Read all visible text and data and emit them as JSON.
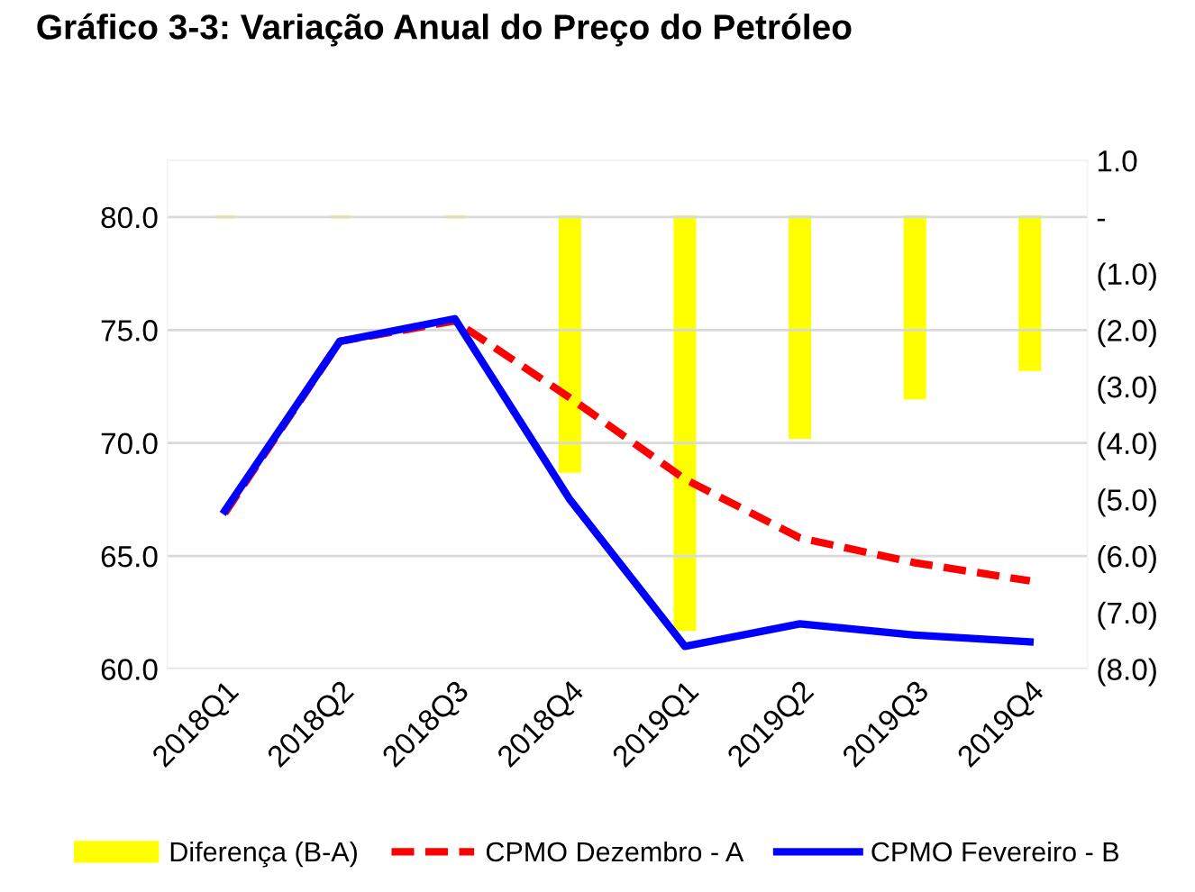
{
  "chart_data": {
    "type": "line",
    "title": "Gráfico 3-3: Variação Anual do Preço do Petróleo",
    "categories": [
      "2018Q1",
      "2018Q2",
      "2018Q3",
      "2018Q4",
      "2019Q1",
      "2019Q2",
      "2019Q3",
      "2019Q4"
    ],
    "series": [
      {
        "name": "Diferença (B-A)",
        "type": "bar",
        "axis": "y2",
        "color": "#ffff00",
        "values": [
          0,
          0,
          0,
          -4.5,
          -7.3,
          -3.9,
          -3.2,
          -2.7
        ]
      },
      {
        "name": "CPMO Dezembro - A",
        "line_style": "dashed",
        "color": "#ff0000",
        "values": [
          66.9,
          74.5,
          75.4,
          72.0,
          68.4,
          65.8,
          64.7,
          63.9
        ]
      },
      {
        "name": "CPMO Fevereiro - B",
        "line_style": "solid",
        "color": "#0000ff",
        "values": [
          67.0,
          74.5,
          75.5,
          67.5,
          61.0,
          62.0,
          61.5,
          61.2
        ]
      }
    ],
    "ylim": [
      60,
      82.5
    ],
    "yticks": [
      {
        "value": 60,
        "label": "60.0"
      },
      {
        "value": 65,
        "label": "65.0"
      },
      {
        "value": 70,
        "label": "70.0"
      },
      {
        "value": 75,
        "label": "75.0"
      },
      {
        "value": 80,
        "label": "80.0"
      }
    ],
    "y2lim": [
      -8,
      1
    ],
    "y2ticks": [
      {
        "value": 1,
        "label": "1.0"
      },
      {
        "value": 0,
        "label": "-"
      },
      {
        "value": -1,
        "label": "(1.0)"
      },
      {
        "value": -2,
        "label": "(2.0)"
      },
      {
        "value": -3,
        "label": "(3.0)"
      },
      {
        "value": -4,
        "label": "(4.0)"
      },
      {
        "value": -5,
        "label": "(5.0)"
      },
      {
        "value": -6,
        "label": "(6.0)"
      },
      {
        "value": -7,
        "label": "(7.0)"
      },
      {
        "value": -8,
        "label": "(8.0)"
      }
    ],
    "grid": "y",
    "legend": "bottom"
  }
}
